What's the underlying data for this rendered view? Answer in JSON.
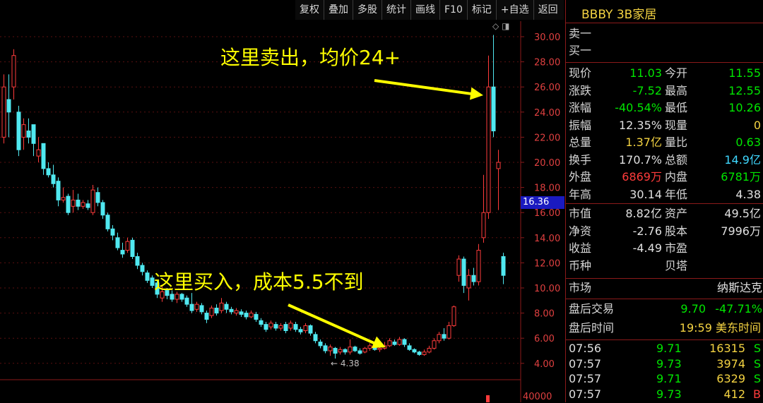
{
  "toolbar": [
    "复权",
    "叠加",
    "多股",
    "统计",
    "画线",
    "F10",
    "标记",
    "+自选",
    "返回"
  ],
  "chart": {
    "axis_labels": [
      "30.00",
      "28.00",
      "26.00",
      "24.00",
      "22.00",
      "20.00",
      "18.00",
      "16.00",
      "14.00",
      "12.00",
      "10.00",
      "8.00",
      "6.00",
      "4.00"
    ],
    "last_price_tag": "16.36",
    "low_marker": "4.38",
    "volume_label": "40000",
    "colors": {
      "up": "#ff3b3b",
      "down": "#50e8f0",
      "grid": "#5a1010",
      "axis": "#8b1a1a"
    }
  },
  "annotations": {
    "sell": "这里卖出，均价24+",
    "buy": "这里买入，成本5.5不到"
  },
  "panel": {
    "title": "BBBY 3B家居",
    "sell1": "卖一",
    "buy1": "买一",
    "quote_rows": [
      [
        "现价",
        "11.03",
        "c-green",
        "今开",
        "11.55",
        "c-green"
      ],
      [
        "涨跌",
        "-7.52",
        "c-green",
        "最高",
        "12.55",
        "c-green"
      ],
      [
        "涨幅",
        "-40.54%",
        "c-green",
        "最低",
        "10.26",
        "c-green"
      ],
      [
        "振幅",
        "12.35%",
        "c-white",
        "现量",
        "0",
        "c-yellow"
      ],
      [
        "总量",
        "1.37亿",
        "c-yellow",
        "量比",
        "0.63",
        "c-green"
      ],
      [
        "换手",
        "170.7%",
        "c-white",
        "总额",
        "14.9亿",
        "c-cyan"
      ],
      [
        "外盘",
        "6869万",
        "c-red",
        "内盘",
        "6781万",
        "c-green"
      ],
      [
        "年高",
        "30.14",
        "c-white",
        "年低",
        "4.38",
        "c-white"
      ]
    ],
    "fund_rows": [
      [
        "市值",
        "8.82亿",
        "资产",
        "49.5亿"
      ],
      [
        "净资",
        "-2.76",
        "股本",
        "7996万"
      ],
      [
        "收益",
        "-4.49",
        "市盈",
        ""
      ],
      [
        "币种",
        "",
        "贝塔",
        ""
      ]
    ],
    "market_label": "市场",
    "market_value": "纳斯达克",
    "after_label": "盘后交易",
    "after_price": "9.70",
    "after_change": "-47.71%",
    "after_time_label": "盘后时间",
    "after_time_value": "19:59 美东时间",
    "ticks": [
      [
        "07:56",
        "9.71",
        "16315",
        "S"
      ],
      [
        "07:57",
        "9.73",
        "3974",
        "S"
      ],
      [
        "07:57",
        "9.71",
        "6329",
        "S"
      ],
      [
        "07:57",
        "9.73",
        "412",
        "B"
      ]
    ]
  }
}
